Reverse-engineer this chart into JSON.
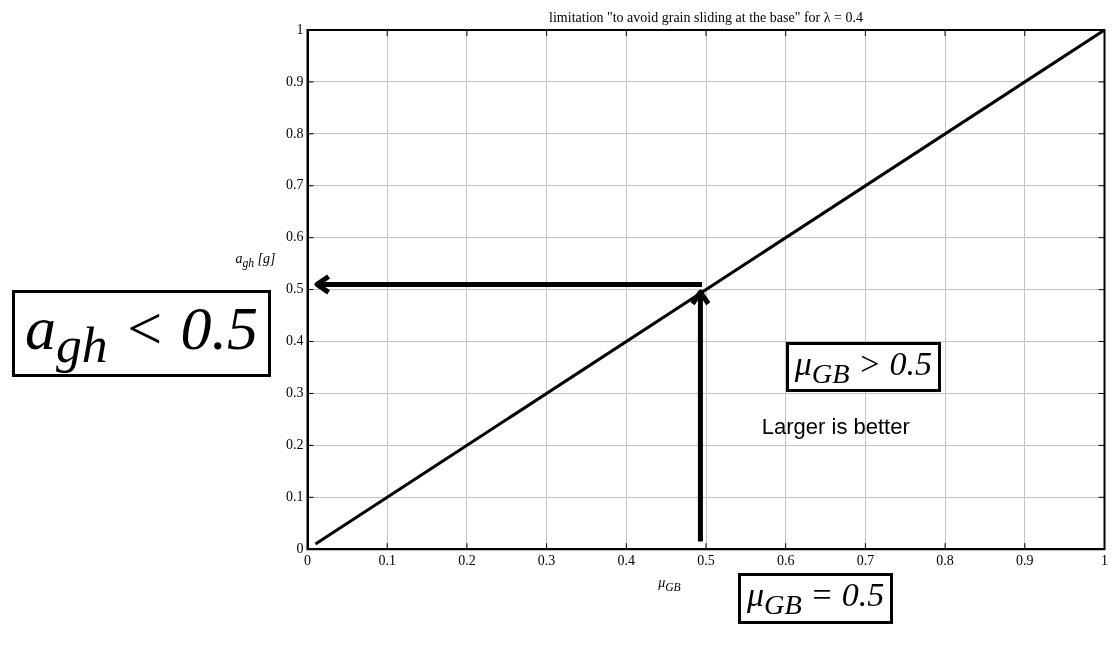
{
  "chart_data": {
    "type": "line",
    "title": "limitation \"to avoid grain sliding at the base\" for λ = 0.4",
    "xlabel": "μ$_{GB}$",
    "ylabel": "a$_{gh}$ [g]",
    "x": [
      0.01,
      1
    ],
    "series": [
      {
        "color": "#000000",
        "values": [
          0.01,
          1
        ]
      }
    ],
    "xlim": [
      0,
      1
    ],
    "ylim": [
      0,
      1
    ],
    "xticks": [
      0,
      0.1,
      0.2,
      0.3,
      0.4,
      0.5,
      0.6,
      0.7,
      0.8,
      0.9,
      1
    ],
    "yticks": [
      0,
      0.1,
      0.2,
      0.3,
      0.4,
      0.5,
      0.6,
      0.7,
      0.8,
      0.9,
      1
    ],
    "grid": true,
    "legend": false,
    "marker": "none",
    "line_style": "solid",
    "annotations": [
      "a$_{gh}$ < 0.5",
      "μ$_{GB}$ > 0.5",
      "Larger is better",
      "μ$_{GB}$ = 0.5"
    ]
  }
}
